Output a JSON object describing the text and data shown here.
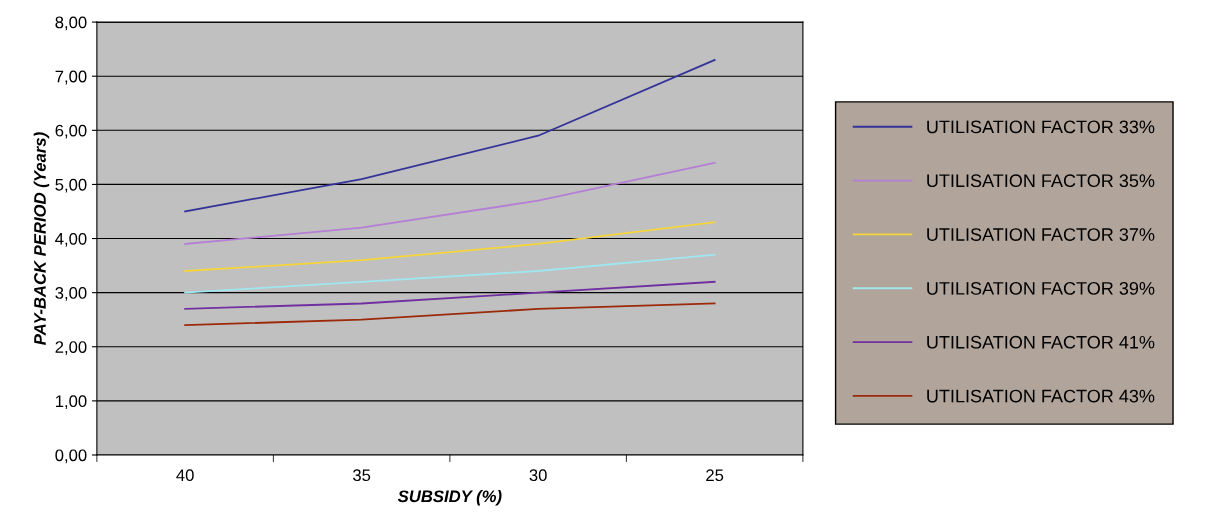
{
  "chart_data": {
    "type": "line",
    "xlabel": "SUBSIDY (%)",
    "ylabel": "PAY-BACK PERIOD (Years)",
    "categories": [
      "40",
      "35",
      "30",
      "25"
    ],
    "ylim": [
      0,
      8
    ],
    "yticks": [
      {
        "value": 0,
        "label": "0,00"
      },
      {
        "value": 1,
        "label": "1,00"
      },
      {
        "value": 2,
        "label": "2,00"
      },
      {
        "value": 3,
        "label": "3,00"
      },
      {
        "value": 4,
        "label": "4,00"
      },
      {
        "value": 5,
        "label": "5,00"
      },
      {
        "value": 6,
        "label": "6,00"
      },
      {
        "value": 7,
        "label": "7,00"
      },
      {
        "value": 8,
        "label": "8,00"
      }
    ],
    "grid": "y",
    "legend": "right",
    "marker": "none",
    "line_style": "solid",
    "series": [
      {
        "name": "UTILISATION FACTOR 33%",
        "color": "#333399",
        "values": [
          4.5,
          5.1,
          5.9,
          7.3
        ]
      },
      {
        "name": "UTILISATION FACTOR 35%",
        "color": "#b47fd4",
        "values": [
          3.9,
          4.2,
          4.7,
          5.4
        ]
      },
      {
        "name": "UTILISATION FACTOR 37%",
        "color": "#f5d53a",
        "values": [
          3.4,
          3.6,
          3.9,
          4.3
        ]
      },
      {
        "name": "UTILISATION FACTOR 39%",
        "color": "#9fe6ee",
        "values": [
          3.0,
          3.2,
          3.4,
          3.7
        ]
      },
      {
        "name": "UTILISATION FACTOR 41%",
        "color": "#7030a0",
        "values": [
          2.7,
          2.8,
          3.0,
          3.2
        ]
      },
      {
        "name": "UTILISATION FACTOR 43%",
        "color": "#9b2a0a",
        "values": [
          2.4,
          2.5,
          2.7,
          2.8
        ]
      }
    ]
  }
}
